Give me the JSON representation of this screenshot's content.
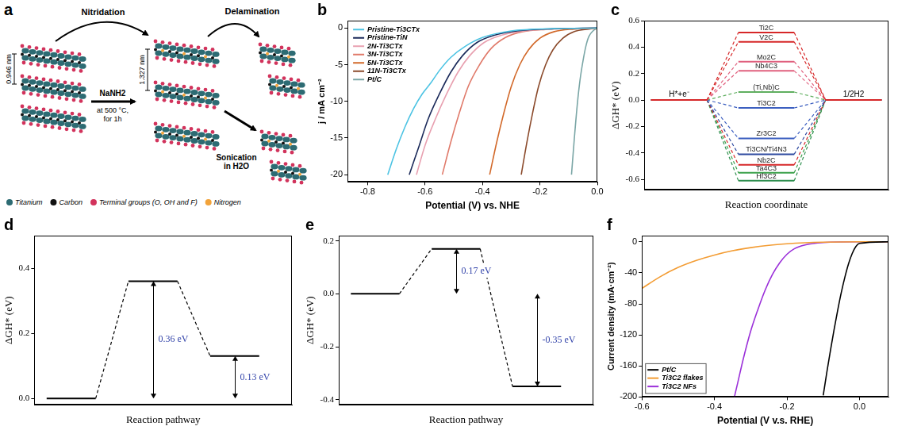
{
  "diagram": {
    "panel": "a",
    "steps": [
      "Nitridation",
      "Delamination"
    ],
    "reagent": "NaNH2",
    "condition": "at 500 °C, for 1h",
    "treatment": "Sonication in H2O",
    "spacings": [
      "0.946 nm",
      "1.327 nm"
    ],
    "legend": [
      {
        "label": "Titanium",
        "color": "#2d6b73"
      },
      {
        "label": "Carbon",
        "color": "#111111"
      },
      {
        "label": "Terminal groups (O, OH and F)",
        "color": "#d2335c"
      },
      {
        "label": "Nitrogen",
        "color": "#f2a33a"
      }
    ]
  },
  "chart_data": [
    {
      "panel": "b",
      "type": "line",
      "x_label": "Potential (V) vs. NHE",
      "y_label": "j / mA cm⁻²",
      "legend": "upper left",
      "grid": false,
      "xlim": [
        -0.87,
        0
      ],
      "xticks": [
        -0.8,
        -0.6,
        -0.4,
        -0.2,
        {
          "value": 0,
          "label": "0.0"
        }
      ],
      "ylim": [
        -21,
        1
      ],
      "yticks": [
        -20,
        -15,
        -10,
        -5,
        0
      ],
      "series": [
        {
          "name": "Pristine-Ti3CTx",
          "color": "#4cc3e3",
          "x": [
            -0.73,
            -0.7,
            -0.67,
            -0.64,
            -0.61,
            -0.58,
            -0.55,
            -0.51,
            -0.46,
            -0.4,
            -0.3,
            -0.15,
            0
          ],
          "values": [
            -20,
            -16.5,
            -13.5,
            -11,
            -9,
            -7.5,
            -5.8,
            -4,
            -2.5,
            -1.3,
            -0.4,
            -0.1,
            0
          ]
        },
        {
          "name": "Pristine-TiN",
          "color": "#1b2a5a",
          "x": [
            -0.655,
            -0.62,
            -0.59,
            -0.55,
            -0.51,
            -0.47,
            -0.42,
            -0.36,
            -0.28,
            -0.15,
            0
          ],
          "values": [
            -20,
            -16,
            -12.5,
            -9,
            -6,
            -3.8,
            -2,
            -1,
            -0.4,
            -0.1,
            0
          ]
        },
        {
          "name": "2N-Ti3CTx",
          "color": "#e8a0b0",
          "x": [
            -0.63,
            -0.6,
            -0.565,
            -0.525,
            -0.485,
            -0.445,
            -0.395,
            -0.335,
            -0.255,
            -0.13,
            0
          ],
          "values": [
            -20,
            -16,
            -12.5,
            -9,
            -6,
            -3.8,
            -2,
            -1,
            -0.4,
            -0.1,
            0
          ]
        },
        {
          "name": "3N-Ti3CTx",
          "color": "#e07a6a",
          "x": [
            -0.54,
            -0.51,
            -0.48,
            -0.45,
            -0.41,
            -0.37,
            -0.32,
            -0.26,
            -0.18,
            0
          ],
          "values": [
            -20,
            -15.5,
            -11.5,
            -8,
            -5,
            -2.8,
            -1.3,
            -0.5,
            -0.2,
            0
          ]
        },
        {
          "name": "5N-Ti3CTx",
          "color": "#d2692a",
          "x": [
            -0.375,
            -0.35,
            -0.325,
            -0.3,
            -0.27,
            -0.24,
            -0.2,
            -0.15,
            -0.08,
            0
          ],
          "values": [
            -20,
            -15.5,
            -11.5,
            -8,
            -5,
            -3,
            -1.4,
            -0.5,
            -0.15,
            0
          ]
        },
        {
          "name": "11N-Ti3CTx",
          "color": "#8b4a2b",
          "x": [
            -0.265,
            -0.245,
            -0.225,
            -0.205,
            -0.18,
            -0.155,
            -0.12,
            -0.08,
            -0.03,
            0
          ],
          "values": [
            -20,
            -15.5,
            -11.5,
            -8,
            -5,
            -3,
            -1.4,
            -0.5,
            -0.15,
            0
          ]
        },
        {
          "name": "Pt/C",
          "color": "#7aa6a6",
          "x": [
            -0.09,
            -0.08,
            -0.07,
            -0.06,
            -0.05,
            -0.04,
            -0.03,
            -0.015,
            0
          ],
          "values": [
            -20,
            -15,
            -10.5,
            -7,
            -4.5,
            -2.5,
            -1.2,
            -0.4,
            0
          ]
        }
      ]
    },
    {
      "panel": "c",
      "type": "levels",
      "x_label": "Reaction coordinate",
      "y_label": "ΔGH* (eV)",
      "grid": false,
      "tick_labels": "y",
      "ylim": [
        -0.68,
        0.6
      ],
      "yticks": [
        -0.6,
        -0.4,
        -0.2,
        {
          "value": 0,
          "label": "0.0"
        },
        0.2,
        0.4,
        0.6
      ],
      "categories": [
        "H*+e⁻",
        null,
        "1/2H2"
      ],
      "series": [
        {
          "name": "Ti2C",
          "color": "#d62728",
          "values": [
            0,
            0.51,
            0
          ]
        },
        {
          "name": "V2C",
          "color": "#d62728",
          "values": [
            0,
            0.44,
            0
          ]
        },
        {
          "name": "Mo2C",
          "color": "#e0607e",
          "values": [
            0,
            0.29,
            0
          ]
        },
        {
          "name": "Nb4C3",
          "color": "#e0607e",
          "values": [
            0,
            0.22,
            0
          ]
        },
        {
          "name": "(Ti,Nb)C",
          "color": "#5fae5f",
          "values": [
            0,
            0.06,
            0
          ]
        },
        {
          "name": "Ti3C2",
          "color": "#3c5fc0",
          "values": [
            0,
            -0.06,
            0
          ]
        },
        {
          "name": "Zr3C2",
          "color": "#3c5fc0",
          "values": [
            0,
            -0.29,
            0
          ]
        },
        {
          "name": "Ti3CN/Ti4N3",
          "color": "#2f4aa0",
          "values": [
            0,
            -0.41,
            0
          ]
        },
        {
          "name": "Nb2C",
          "color": "#d62728",
          "values": [
            0,
            -0.49,
            0
          ]
        },
        {
          "name": "Ta4C3",
          "color": "#3aa04a",
          "values": [
            0,
            -0.55,
            0
          ]
        },
        {
          "name": "Hf3C2",
          "color": "#2f8f4f",
          "values": [
            0,
            -0.61,
            0
          ]
        }
      ]
    },
    {
      "panel": "d",
      "type": "levels",
      "x_label": "Reaction pathway",
      "y_label": "ΔGH* (eV)",
      "grid": false,
      "tick_labels": "y",
      "ylim": [
        -0.02,
        0.5
      ],
      "yticks": [
        {
          "value": 0,
          "label": "0.0"
        },
        0.2,
        0.4
      ],
      "color": "#000000",
      "values": [
        0,
        0.36,
        0.13
      ],
      "value_labels": [
        null,
        "0.36 eV",
        "0.13 eV"
      ]
    },
    {
      "panel": "e",
      "type": "levels",
      "x_label": "Reaction pathway",
      "y_label": "ΔGH* (eV)",
      "grid": false,
      "tick_labels": "y",
      "ylim": [
        -0.42,
        0.22
      ],
      "yticks": [
        -0.4,
        -0.2,
        {
          "value": 0,
          "label": "0.0"
        },
        0.2
      ],
      "color": "#000000",
      "values": [
        0,
        0.17,
        -0.35
      ],
      "value_labels": [
        null,
        "0.17 eV",
        "-0.35 eV"
      ]
    },
    {
      "panel": "f",
      "type": "line",
      "x_label": "Potential (V v.s. RHE)",
      "y_label": "Current density (mA·cm⁻²)",
      "legend": "lower left",
      "grid": false,
      "xlim": [
        -0.6,
        0.08
      ],
      "xticks": [
        -0.6,
        -0.4,
        -0.2,
        {
          "value": 0,
          "label": "0.0"
        }
      ],
      "ylim": [
        -200,
        8
      ],
      "yticks": [
        -200,
        -160,
        -120,
        -80,
        -40,
        0
      ],
      "series": [
        {
          "name": "Pt/C",
          "color": "#000000",
          "x": [
            -0.1,
            -0.09,
            -0.08,
            -0.07,
            -0.06,
            -0.05,
            -0.04,
            -0.03,
            -0.02,
            -0.01,
            0,
            0.08
          ],
          "values": [
            -198,
            -168,
            -140,
            -113,
            -88,
            -65,
            -45,
            -28,
            -15,
            -6,
            -2,
            0
          ]
        },
        {
          "name": "Ti3C2 flakes",
          "color": "#f39c33",
          "x": [
            -0.6,
            -0.55,
            -0.5,
            -0.45,
            -0.4,
            -0.35,
            -0.3,
            -0.25,
            -0.2,
            -0.15,
            -0.1,
            0,
            0.08
          ],
          "values": [
            -60,
            -45,
            -33,
            -24,
            -17,
            -11.5,
            -7.5,
            -4.5,
            -2.5,
            -1.2,
            -0.5,
            0,
            0
          ]
        },
        {
          "name": "Ti3C2 NFs",
          "color": "#9b30d9",
          "x": [
            -0.345,
            -0.335,
            -0.32,
            -0.3,
            -0.28,
            -0.26,
            -0.24,
            -0.22,
            -0.2,
            -0.18,
            -0.15,
            -0.1,
            0,
            0.08
          ],
          "values": [
            -200,
            -180,
            -150,
            -115,
            -87,
            -62,
            -42,
            -27,
            -16,
            -9,
            -4,
            -1,
            0,
            0
          ]
        }
      ]
    }
  ]
}
